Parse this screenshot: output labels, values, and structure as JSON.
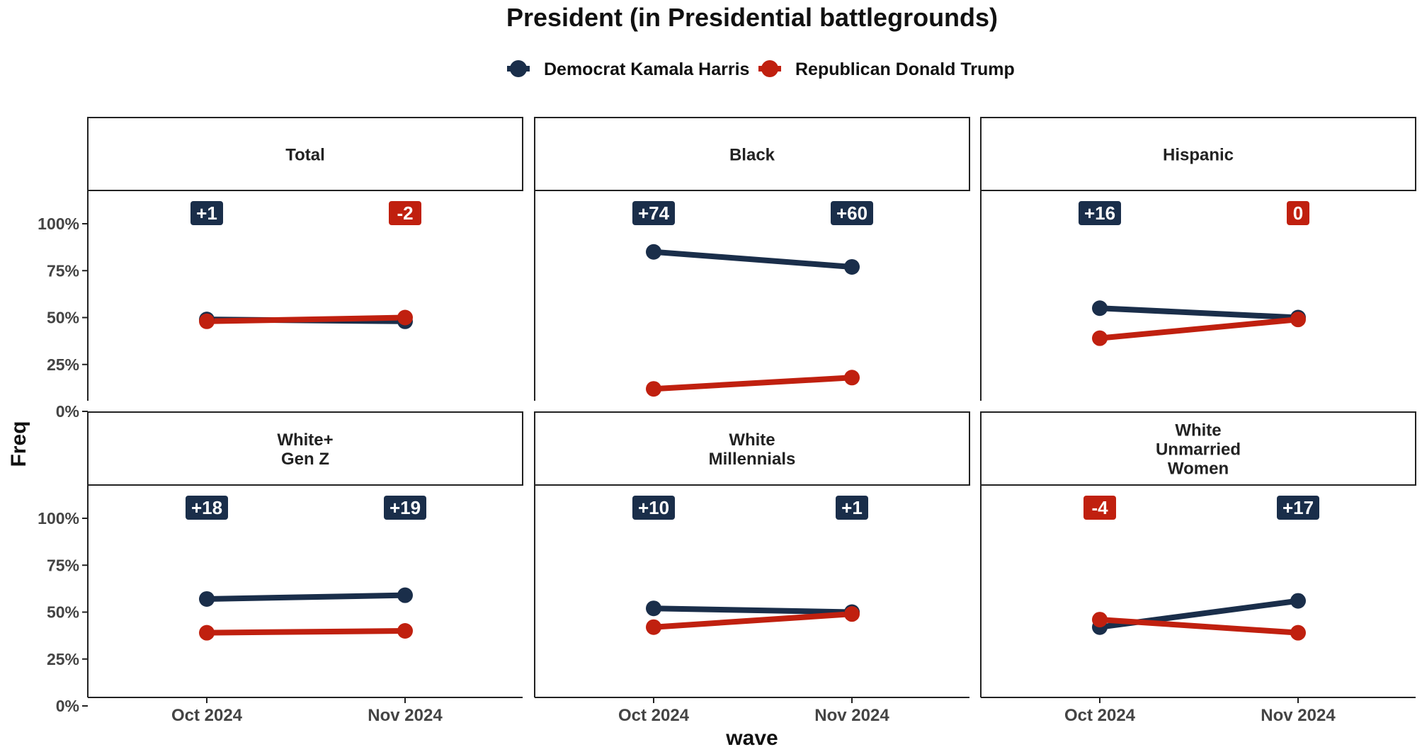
{
  "chart_data": {
    "type": "line",
    "title": "President (in Presidential battlegrounds)",
    "xlabel": "wave",
    "ylabel": "Freq",
    "x": [
      "Oct 2024",
      "Nov 2024"
    ],
    "ylim": [
      0,
      1
    ],
    "y_ticks": [
      "0%",
      "25%",
      "50%",
      "75%",
      "100%"
    ],
    "legend_position": "top",
    "grid": false,
    "colors": {
      "harris": "#1a2e4a",
      "trump": "#c0200f"
    },
    "legend": [
      {
        "key": "harris",
        "label": "Democrat Kamala Harris"
      },
      {
        "key": "trump",
        "label": "Republican Donald Trump"
      }
    ],
    "facets": [
      {
        "label": [
          "Total"
        ],
        "series": [
          {
            "name": "Democrat Kamala Harris",
            "key": "harris",
            "values": [
              0.49,
              0.48
            ]
          },
          {
            "name": "Republican Donald Trump",
            "key": "trump",
            "values": [
              0.48,
              0.5
            ]
          }
        ],
        "margins": [
          {
            "text": "+1",
            "party": "harris"
          },
          {
            "text": "-2",
            "party": "trump"
          }
        ]
      },
      {
        "label": [
          "Black"
        ],
        "series": [
          {
            "name": "Democrat Kamala Harris",
            "key": "harris",
            "values": [
              0.85,
              0.77
            ]
          },
          {
            "name": "Republican Donald Trump",
            "key": "trump",
            "values": [
              0.12,
              0.18
            ]
          }
        ],
        "margins": [
          {
            "text": "+74",
            "party": "harris"
          },
          {
            "text": "+60",
            "party": "harris"
          }
        ]
      },
      {
        "label": [
          "Hispanic"
        ],
        "series": [
          {
            "name": "Democrat Kamala Harris",
            "key": "harris",
            "values": [
              0.55,
              0.5
            ]
          },
          {
            "name": "Republican Donald Trump",
            "key": "trump",
            "values": [
              0.39,
              0.49
            ]
          }
        ],
        "margins": [
          {
            "text": "+16",
            "party": "harris"
          },
          {
            "text": "0",
            "party": "trump"
          }
        ]
      },
      {
        "label": [
          "White+",
          "Gen Z"
        ],
        "series": [
          {
            "name": "Democrat Kamala Harris",
            "key": "harris",
            "values": [
              0.57,
              0.59
            ]
          },
          {
            "name": "Republican Donald Trump",
            "key": "trump",
            "values": [
              0.39,
              0.4
            ]
          }
        ],
        "margins": [
          {
            "text": "+18",
            "party": "harris"
          },
          {
            "text": "+19",
            "party": "harris"
          }
        ]
      },
      {
        "label": [
          "White",
          "Millennials"
        ],
        "series": [
          {
            "name": "Democrat Kamala Harris",
            "key": "harris",
            "values": [
              0.52,
              0.5
            ]
          },
          {
            "name": "Republican Donald Trump",
            "key": "trump",
            "values": [
              0.42,
              0.49
            ]
          }
        ],
        "margins": [
          {
            "text": "+10",
            "party": "harris"
          },
          {
            "text": "+1",
            "party": "harris"
          }
        ]
      },
      {
        "label": [
          "White",
          "Unmarried",
          "Women"
        ],
        "series": [
          {
            "name": "Democrat Kamala Harris",
            "key": "harris",
            "values": [
              0.42,
              0.56
            ]
          },
          {
            "name": "Republican Donald Trump",
            "key": "trump",
            "values": [
              0.46,
              0.39
            ]
          }
        ],
        "margins": [
          {
            "text": "-4",
            "party": "trump"
          },
          {
            "text": "+17",
            "party": "harris"
          }
        ]
      }
    ]
  }
}
